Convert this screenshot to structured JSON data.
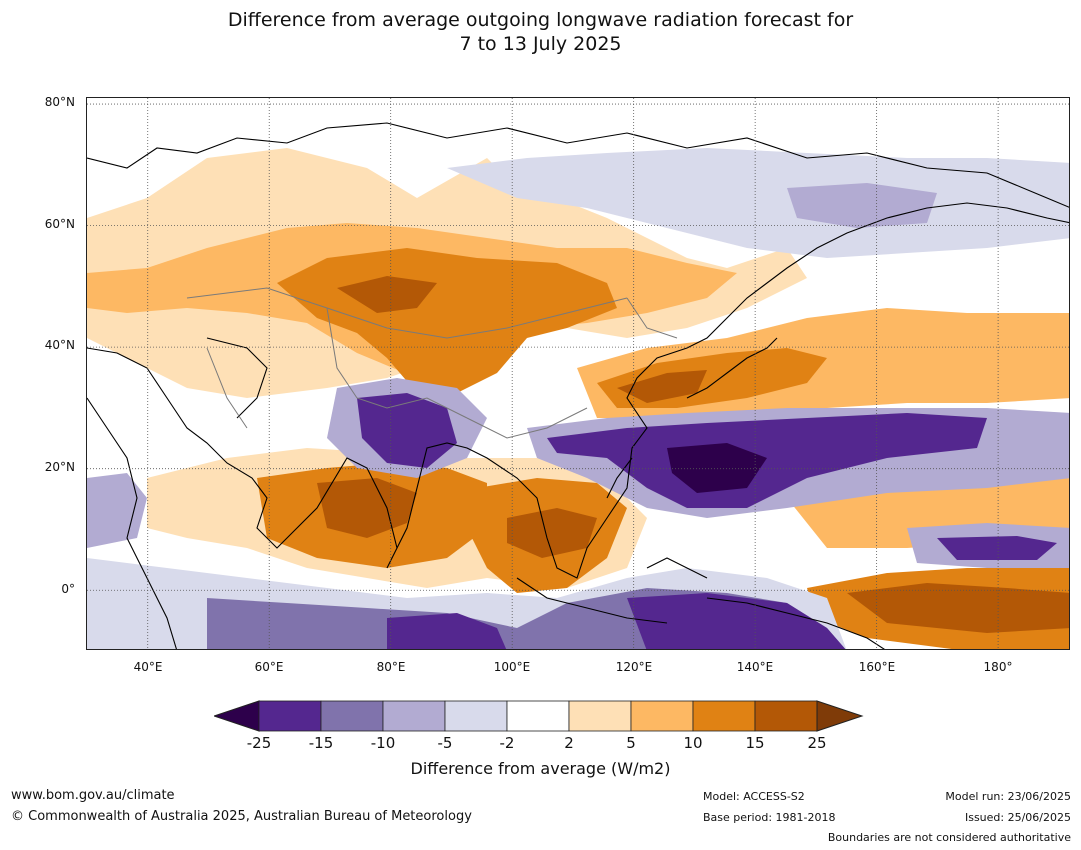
{
  "title_line1": "Difference from average outgoing longwave radiation forecast for",
  "title_line2": "7 to 13 July 2025",
  "map": {
    "lon_range": [
      30,
      192
    ],
    "lat_range": [
      -10,
      81
    ],
    "lat_ticks": [
      {
        "value": 80,
        "label": "80°N"
      },
      {
        "value": 60,
        "label": "60°N"
      },
      {
        "value": 40,
        "label": "40°N"
      },
      {
        "value": 20,
        "label": "20°N"
      },
      {
        "value": 0,
        "label": "0°"
      }
    ],
    "lon_ticks": [
      {
        "value": 40,
        "label": "40°E"
      },
      {
        "value": 60,
        "label": "60°E"
      },
      {
        "value": 80,
        "label": "80°E"
      },
      {
        "value": 100,
        "label": "100°E"
      },
      {
        "value": 120,
        "label": "120°E"
      },
      {
        "value": 140,
        "label": "140°E"
      },
      {
        "value": 160,
        "label": "160°E"
      },
      {
        "value": 180,
        "label": "180°"
      }
    ]
  },
  "colorbar": {
    "ticks": [
      "-25",
      "-15",
      "-10",
      "-5",
      "-2",
      "2",
      "5",
      "10",
      "15",
      "25"
    ],
    "colors": [
      "#54278f",
      "#8073ac",
      "#b2abd2",
      "#d8daeb",
      "#ffffff",
      "#fee0b6",
      "#fdb863",
      "#e08214",
      "#b35806"
    ],
    "under_color": "#2d004b",
    "over_color": "#7f3b08",
    "label": "Difference from average (W/m2)"
  },
  "footer": {
    "website": "www.bom.gov.au/climate",
    "copyright": "© Commonwealth of Australia 2025, Australian Bureau of Meteorology",
    "model": "Model: ACCESS-S2",
    "base_period": "Base period: 1981-2018",
    "model_run": "Model run: 23/06/2025",
    "issued": "Issued: 25/06/2025",
    "disclaimer": "Boundaries are not considered authoritative"
  }
}
